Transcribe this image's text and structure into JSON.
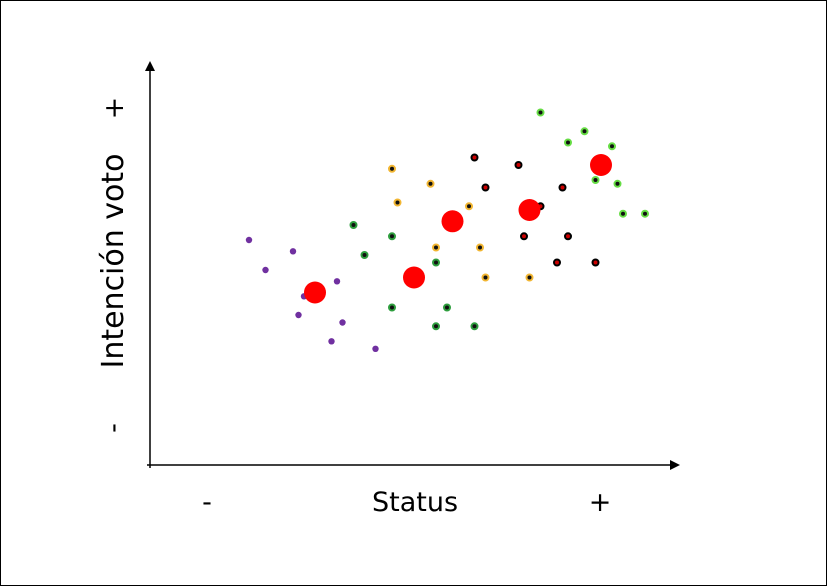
{
  "chart_data": {
    "type": "scatter",
    "xlabel": "Status",
    "ylabel": "Intención voto",
    "x_low": "-",
    "x_high": "+",
    "y_low": "-",
    "y_high": "+",
    "xlim": [
      0,
      100
    ],
    "ylim": [
      0,
      100
    ],
    "grid": false,
    "group_colors": [
      "#7030a0",
      "#2e9e3e",
      "#f2b632",
      "#c00000",
      "#66dd44",
      "#ff0000"
    ],
    "series": [
      {
        "name": "",
        "fill": "#7030a0",
        "ring": null,
        "points": [
          [
            18,
            60
          ],
          [
            21,
            52
          ],
          [
            26,
            57
          ],
          [
            28,
            45
          ],
          [
            27,
            40
          ],
          [
            34,
            49
          ],
          [
            35,
            38
          ],
          [
            33,
            33
          ],
          [
            41,
            31
          ]
        ]
      },
      {
        "name": "",
        "fill": "#111111",
        "ring": "#2e9e3e",
        "points": [
          [
            37,
            64
          ],
          [
            39,
            56
          ],
          [
            44,
            61
          ],
          [
            47,
            50
          ],
          [
            44,
            42
          ],
          [
            52,
            54
          ],
          [
            54,
            42
          ],
          [
            52,
            37
          ],
          [
            59,
            37
          ]
        ]
      },
      {
        "name": "",
        "fill": "#111111",
        "ring": "#f2b632",
        "points": [
          [
            44,
            79
          ],
          [
            45,
            70
          ],
          [
            51,
            75
          ],
          [
            52,
            58
          ],
          [
            58,
            69
          ],
          [
            60,
            58
          ],
          [
            61,
            50
          ],
          [
            69,
            50
          ]
        ]
      },
      {
        "name": "",
        "fill": "#cc0000",
        "ring": "#000000",
        "points": [
          [
            59,
            82
          ],
          [
            61,
            74
          ],
          [
            67,
            80
          ],
          [
            68,
            61
          ],
          [
            71,
            69
          ],
          [
            75,
            74
          ],
          [
            76,
            61
          ],
          [
            74,
            54
          ],
          [
            81,
            54
          ]
        ]
      },
      {
        "name": "",
        "fill": "#111111",
        "ring": "#66dd44",
        "points": [
          [
            71,
            94
          ],
          [
            76,
            86
          ],
          [
            79,
            89
          ],
          [
            81,
            76
          ],
          [
            84,
            85
          ],
          [
            85,
            75
          ],
          [
            86,
            67
          ],
          [
            90,
            67
          ],
          [
            83,
            81
          ]
        ]
      },
      {
        "name": "",
        "fill": "#ff0000",
        "ring": null,
        "large": true,
        "points": [
          [
            30,
            46
          ],
          [
            48,
            50
          ],
          [
            55,
            65
          ],
          [
            69,
            68
          ],
          [
            82,
            80
          ]
        ]
      }
    ]
  }
}
